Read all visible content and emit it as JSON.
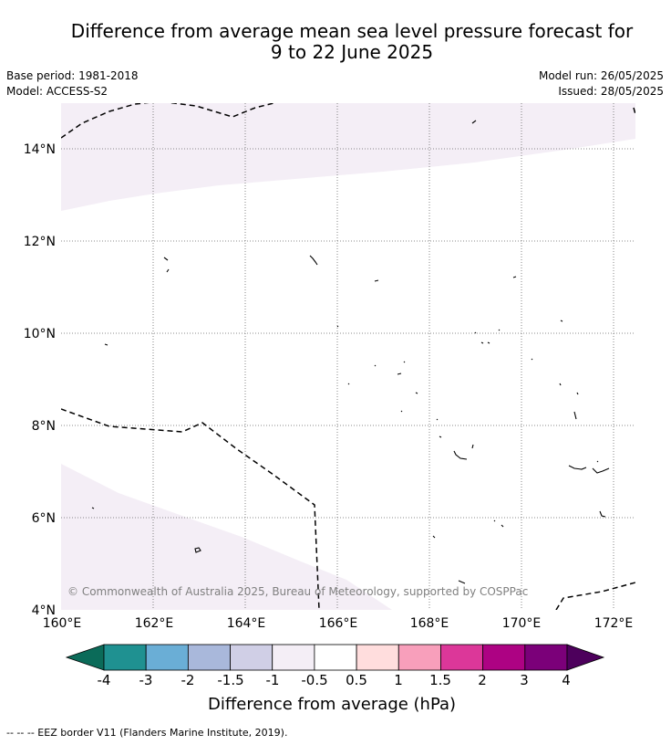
{
  "header": {
    "title_line1": "Difference from average mean sea level pressure forecast for",
    "title_line2": "9 to 22 June 2025",
    "base_period": "Base period: 1981-2018",
    "model": "Model: ACCESS-S2",
    "model_run": "Model run: 26/05/2025",
    "issued": "Issued: 28/05/2025"
  },
  "map": {
    "lon_labels": [
      "160°E",
      "162°E",
      "164°E",
      "166°E",
      "168°E",
      "170°E",
      "172°E"
    ],
    "lat_labels": [
      "14°N",
      "12°N",
      "10°N",
      "8°N",
      "6°N",
      "4°N"
    ],
    "extent": {
      "lon_min": 160,
      "lon_max": 172.5,
      "lat_min": 4,
      "lat_max": 15
    },
    "copyright": "© Commonwealth of Australia 2025, Bureau of Meteorology, supported by COSPPac",
    "anomaly_fill_color": "#f4eef6"
  },
  "colorbar": {
    "labels": [
      "-4",
      "-3",
      "-2",
      "-1.5",
      "-1",
      "-0.5",
      "0.5",
      "1",
      "1.5",
      "2",
      "3",
      "4"
    ],
    "colors": {
      "below": "#0b6b59",
      "bins": [
        "#1f9191",
        "#6aaed6",
        "#a9b8db",
        "#d0cfe6",
        "#f4eef6",
        "#ffffff",
        "#ffdddd",
        "#f89fbb",
        "#dc3799",
        "#ad0283",
        "#7b0079"
      ],
      "above": "#4d005c"
    },
    "title": "Difference from average (hPa)"
  },
  "footnote": "--  --  -- EEZ border V11 (Flanders Marine Institute, 2019)."
}
